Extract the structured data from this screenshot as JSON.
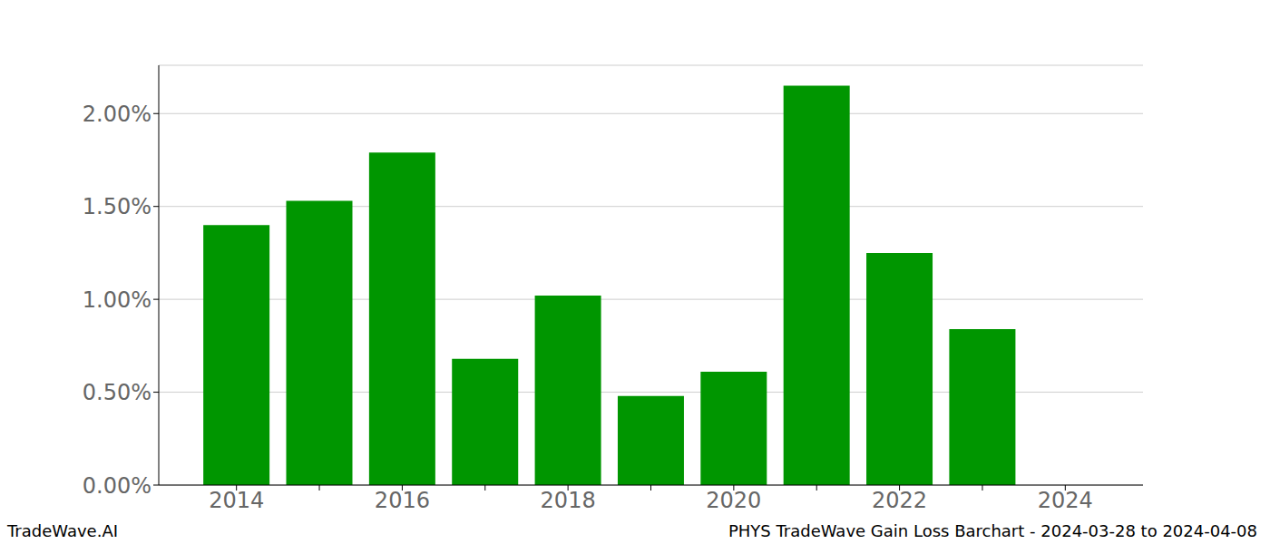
{
  "chart_data": {
    "type": "bar",
    "title": "PHYS TradeWave Gain Loss Barchart - 2024-03-28 to 2024-04-08",
    "annotations": [
      "TradeWave.AI"
    ],
    "categories": [
      "2014",
      null,
      "2016",
      null,
      "2018",
      null,
      "2020",
      null,
      "2022",
      null,
      "2024"
    ],
    "values": [
      1.4,
      1.53,
      1.79,
      0.68,
      1.02,
      0.48,
      0.61,
      2.15,
      1.25,
      0.84,
      null
    ],
    "color": "#009600",
    "ylim": [
      0,
      2.26
    ],
    "yticks": [
      {
        "value": 0,
        "label": "0.00%"
      },
      {
        "value": 0.5,
        "label": "0.50%"
      },
      {
        "value": 1.0,
        "label": "1.00%"
      },
      {
        "value": 1.5,
        "label": "1.50%"
      },
      {
        "value": 2.0,
        "label": "2.00%"
      }
    ],
    "grid": true
  }
}
